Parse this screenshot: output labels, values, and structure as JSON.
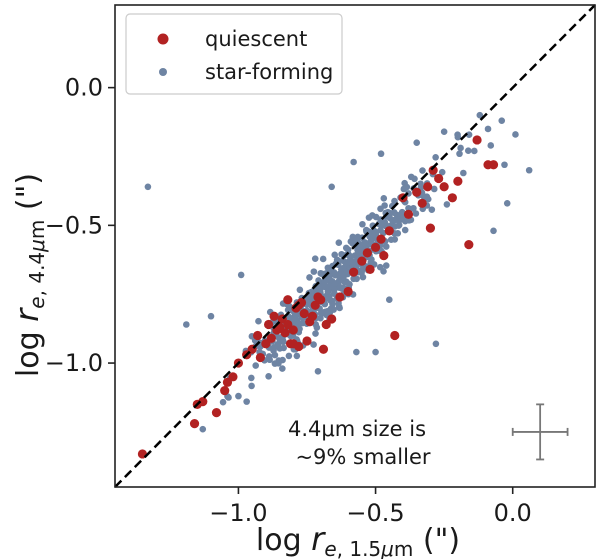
{
  "chart_data": {
    "type": "scatter",
    "xlabel": "log r_{e,1.5μm} (\")",
    "ylabel": "log r_{e,4.4μm} (\")",
    "xlim": [
      -1.45,
      0.3
    ],
    "ylim": [
      -1.45,
      0.3
    ],
    "x_ticks": [
      -1.0,
      -0.5,
      0.0
    ],
    "y_ticks": [
      -1.0,
      -0.5,
      0.0
    ],
    "tick_labels": [
      "−1.0",
      "−0.5",
      "0.0"
    ],
    "reference_line": {
      "style": "dashed",
      "relation": "y = x",
      "color": "#000000"
    },
    "legend": {
      "placement": "top-left",
      "entries": [
        "quiescent",
        "star-forming"
      ]
    },
    "annotation": [
      "4.4μm size is",
      "~9% smaller"
    ],
    "error_bar": {
      "x": 0.1,
      "y": -1.25,
      "xerr": 0.2,
      "yerr": 0.1,
      "color": "#777777"
    },
    "series": [
      {
        "name": "quiescent",
        "color": "#b22222",
        "points": [
          [
            -1.35,
            -1.33
          ],
          [
            -1.16,
            -1.22
          ],
          [
            -1.15,
            -1.15
          ],
          [
            -1.13,
            -1.14
          ],
          [
            -1.08,
            -1.18
          ],
          [
            -1.05,
            -1.1
          ],
          [
            -1.04,
            -1.07
          ],
          [
            -1.02,
            -1.05
          ],
          [
            -1.0,
            -1.0
          ],
          [
            -0.97,
            -0.97
          ],
          [
            -0.95,
            -0.95
          ],
          [
            -0.93,
            -0.9
          ],
          [
            -0.92,
            -0.98
          ],
          [
            -0.9,
            -0.93
          ],
          [
            -0.89,
            -0.86
          ],
          [
            -0.88,
            -0.91
          ],
          [
            -0.87,
            -0.83
          ],
          [
            -0.86,
            -0.88
          ],
          [
            -0.85,
            -0.87
          ],
          [
            -0.84,
            -0.84
          ],
          [
            -0.83,
            -0.89
          ],
          [
            -0.82,
            -0.86
          ],
          [
            -0.81,
            -0.93
          ],
          [
            -0.8,
            -0.88
          ],
          [
            -0.79,
            -0.8
          ],
          [
            -0.78,
            -0.79
          ],
          [
            -0.77,
            -0.78
          ],
          [
            -0.76,
            -0.82
          ],
          [
            -0.75,
            -0.92
          ],
          [
            -0.74,
            -0.85
          ],
          [
            -0.73,
            -0.83
          ],
          [
            -0.72,
            -0.79
          ],
          [
            -0.71,
            -0.76
          ],
          [
            -0.7,
            -0.77
          ],
          [
            -0.69,
            -0.95
          ],
          [
            -0.68,
            -0.86
          ],
          [
            -0.66,
            -0.84
          ],
          [
            -0.63,
            -0.76
          ],
          [
            -0.6,
            -0.74
          ],
          [
            -0.58,
            -0.67
          ],
          [
            -0.55,
            -0.63
          ],
          [
            -0.53,
            -0.6
          ],
          [
            -0.52,
            -0.66
          ],
          [
            -0.5,
            -0.58
          ],
          [
            -0.48,
            -0.55
          ],
          [
            -0.47,
            -0.61
          ],
          [
            -0.45,
            -0.52
          ],
          [
            -0.43,
            -0.9
          ],
          [
            -0.4,
            -0.4
          ],
          [
            -0.38,
            -0.46
          ],
          [
            -0.35,
            -0.38
          ],
          [
            -0.33,
            -0.42
          ],
          [
            -0.31,
            -0.36
          ],
          [
            -0.3,
            -0.51
          ],
          [
            -0.29,
            -0.3
          ],
          [
            -0.27,
            -0.33
          ],
          [
            -0.25,
            -0.36
          ],
          [
            -0.22,
            -0.4
          ],
          [
            -0.2,
            -0.34
          ],
          [
            -0.16,
            -0.57
          ],
          [
            -0.13,
            -0.19
          ],
          [
            -0.09,
            -0.28
          ],
          [
            -0.07,
            -0.28
          ],
          [
            -0.8,
            -0.93
          ],
          [
            -0.82,
            -0.77
          ],
          [
            -0.78,
            -0.94
          ]
        ]
      },
      {
        "name": "star-forming",
        "color": "#6e84a3",
        "points": []
      }
    ]
  }
}
